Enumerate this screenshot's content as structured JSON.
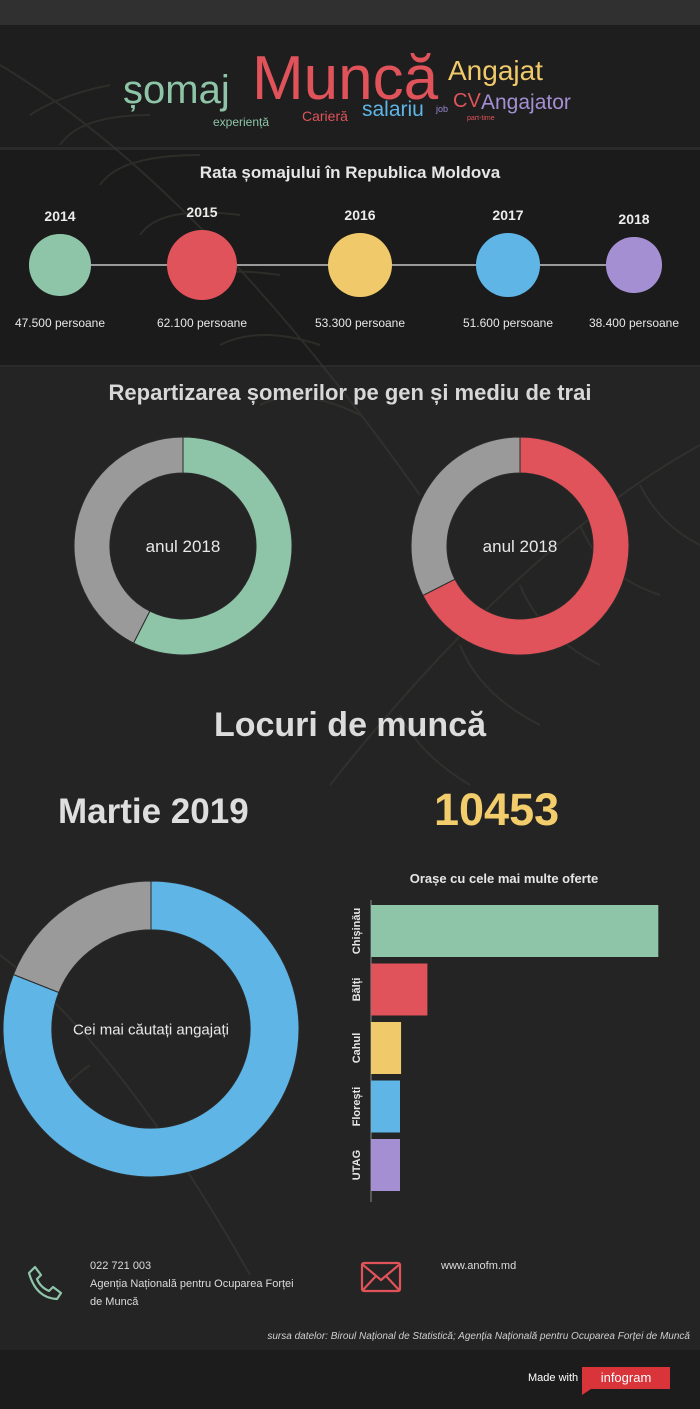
{
  "word_cloud": [
    {
      "text": "șomaj",
      "color": "#8ec5a8"
    },
    {
      "text": "Muncă",
      "color": "#e0535a"
    },
    {
      "text": "Angajat",
      "color": "#f0c96a"
    },
    {
      "text": "experiență",
      "color": "#8ec5a8"
    },
    {
      "text": "Carieră",
      "color": "#e0535a"
    },
    {
      "text": "salariu",
      "color": "#5eb5e6"
    },
    {
      "text": "job",
      "color": "#9b8ad0"
    },
    {
      "text": "CV",
      "color": "#e0535a"
    },
    {
      "text": "Angajator",
      "color": "#a48fd3"
    },
    {
      "text": "part-time",
      "color": "#e0535a"
    }
  ],
  "timeline": {
    "title": "Rata șomajului în Republica Moldova",
    "items": [
      {
        "year": "2014",
        "label": "47.500 persoane",
        "value": 47500,
        "color": "#8ec5a8"
      },
      {
        "year": "2015",
        "label": "62.100 persoane",
        "value": 62100,
        "color": "#e0535a"
      },
      {
        "year": "2016",
        "label": "53.300 persoane",
        "value": 53300,
        "color": "#f0c96a"
      },
      {
        "year": "2017",
        "label": "51.600 persoane",
        "value": 51600,
        "color": "#5eb5e6"
      },
      {
        "year": "2018",
        "label": "38.400 persoane",
        "value": 38400,
        "color": "#a48fd3"
      }
    ]
  },
  "gender_section": {
    "title": "Repartizarea șomerilor pe gen și mediu de trai"
  },
  "jobs_section": {
    "title": "Locuri de muncă",
    "month": "Martie 2019",
    "count": "10453"
  },
  "bar_title": "Orașe cu cele mai multe oferte",
  "chart_data": [
    {
      "type": "pie",
      "center_label": "anul 2018",
      "slices": [
        {
          "value": 57.5,
          "color": "#8ec5a8"
        },
        {
          "value": 42.5,
          "color": "#9a9a9a"
        }
      ]
    },
    {
      "type": "pie",
      "center_label": "anul 2018",
      "slices": [
        {
          "value": 67.5,
          "color": "#e0535a"
        },
        {
          "value": 32.5,
          "color": "#9a9a9a"
        }
      ]
    },
    {
      "type": "pie",
      "center_label": "Cei mai căutați angajați",
      "slices": [
        {
          "value": 81,
          "color": "#5eb5e6"
        },
        {
          "value": 19,
          "color": "#9a9a9a"
        }
      ]
    },
    {
      "type": "bar",
      "orientation": "horizontal",
      "title": "Orașe cu cele mai multe oferte",
      "categories": [
        "Chișinău",
        "Bălți",
        "Cahul",
        "Florești",
        "UTAG"
      ],
      "values": [
        5350,
        1050,
        560,
        540,
        540
      ],
      "colors": [
        "#8ec5a8",
        "#e0535a",
        "#f0c96a",
        "#5eb5e6",
        "#a48fd3"
      ],
      "xlim": [
        0,
        5400
      ]
    }
  ],
  "contact": {
    "phone": "022 721 003",
    "agency_line1": "Agenția Națională pentru Ocuparea Forței",
    "agency_line2": "de Muncă",
    "website": "www.anofm.md",
    "phone_icon": "phone-icon",
    "mail_icon": "envelope-icon"
  },
  "source": "sursa datelor: Biroul Național de Statistică; Agenția Națională pentru Ocuparea Forței de Muncă",
  "footer": {
    "made_with": "Made with",
    "brand": "infogram"
  }
}
